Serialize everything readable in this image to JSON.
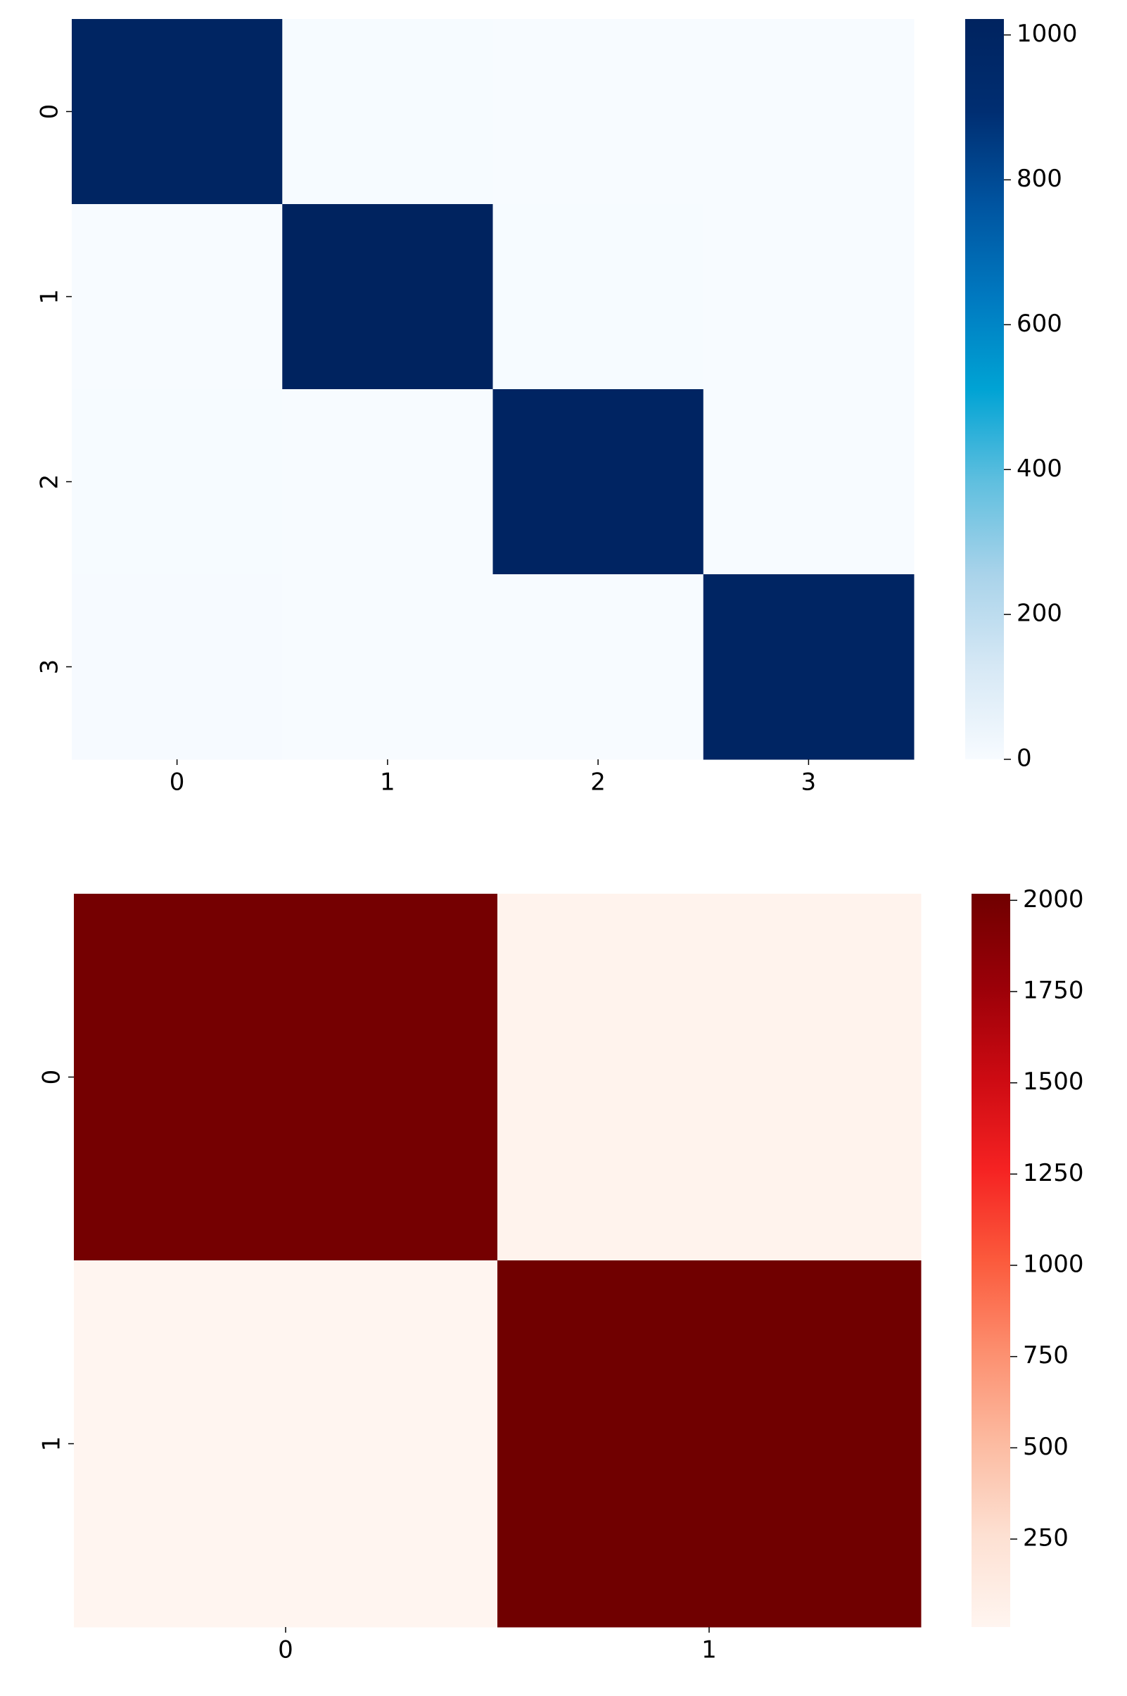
{
  "chart_data": [
    {
      "type": "heatmap",
      "colormap": "Blues",
      "x": [
        "0",
        "1",
        "2",
        "3"
      ],
      "y": [
        "0",
        "1",
        "2",
        "3"
      ],
      "values": [
        [
          1000,
          2,
          1,
          0
        ],
        [
          1,
          1022,
          2,
          1
        ],
        [
          2,
          1,
          1005,
          1
        ],
        [
          5,
          1,
          1,
          998
        ]
      ],
      "clim": [
        0,
        1022
      ],
      "cticks": [
        0,
        200,
        400,
        600,
        800,
        1000
      ]
    },
    {
      "type": "heatmap",
      "colormap": "Reds",
      "x": [
        "0",
        "1"
      ],
      "y": [
        "0",
        "1"
      ],
      "values": [
        [
          1990,
          30
        ],
        [
          9,
          2018
        ]
      ],
      "clim": [
        9,
        2018
      ],
      "cticks": [
        250,
        500,
        750,
        1000,
        1250,
        1500,
        1750,
        2000
      ]
    }
  ]
}
